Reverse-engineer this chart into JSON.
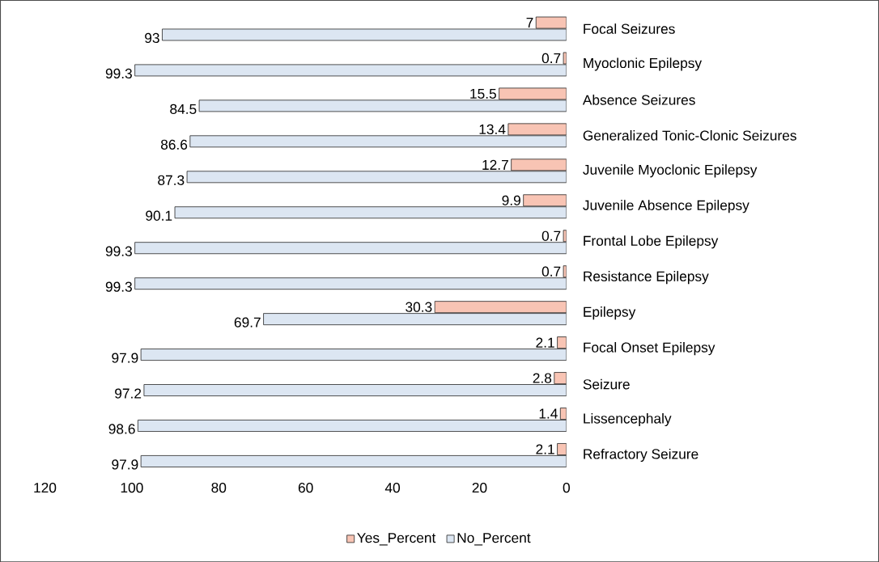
{
  "chart_data": {
    "type": "bar",
    "orientation": "horizontal",
    "categories": [
      "Focal Seizures",
      "Myoclonic Epilepsy",
      "Absence Seizures",
      "Generalized Tonic-Clonic Seizures",
      "Juvenile Myoclonic Epilepsy",
      "Juvenile Absence Epilepsy",
      "Frontal Lobe Epilepsy",
      "Resistance Epilepsy",
      "Epilepsy",
      "Focal Onset Epilepsy",
      "Seizure",
      "Lissencephaly",
      "Refractory Seizure"
    ],
    "series": [
      {
        "name": "Yes_Percent",
        "color": "#f8c4b4",
        "values": [
          7,
          0.7,
          15.5,
          13.4,
          12.7,
          9.9,
          0.7,
          0.7,
          30.3,
          2.1,
          2.8,
          1.4,
          2.1
        ]
      },
      {
        "name": "No_Percent",
        "color": "#dce6f2",
        "values": [
          93,
          99.3,
          84.5,
          86.6,
          87.3,
          90.1,
          99.3,
          99.3,
          69.7,
          97.9,
          97.2,
          98.6,
          97.9
        ]
      }
    ],
    "xlim": [
      120,
      0
    ],
    "xticks": [
      0,
      20,
      40,
      60,
      80,
      100,
      120
    ],
    "data_labels": true,
    "legend": "bottom"
  }
}
